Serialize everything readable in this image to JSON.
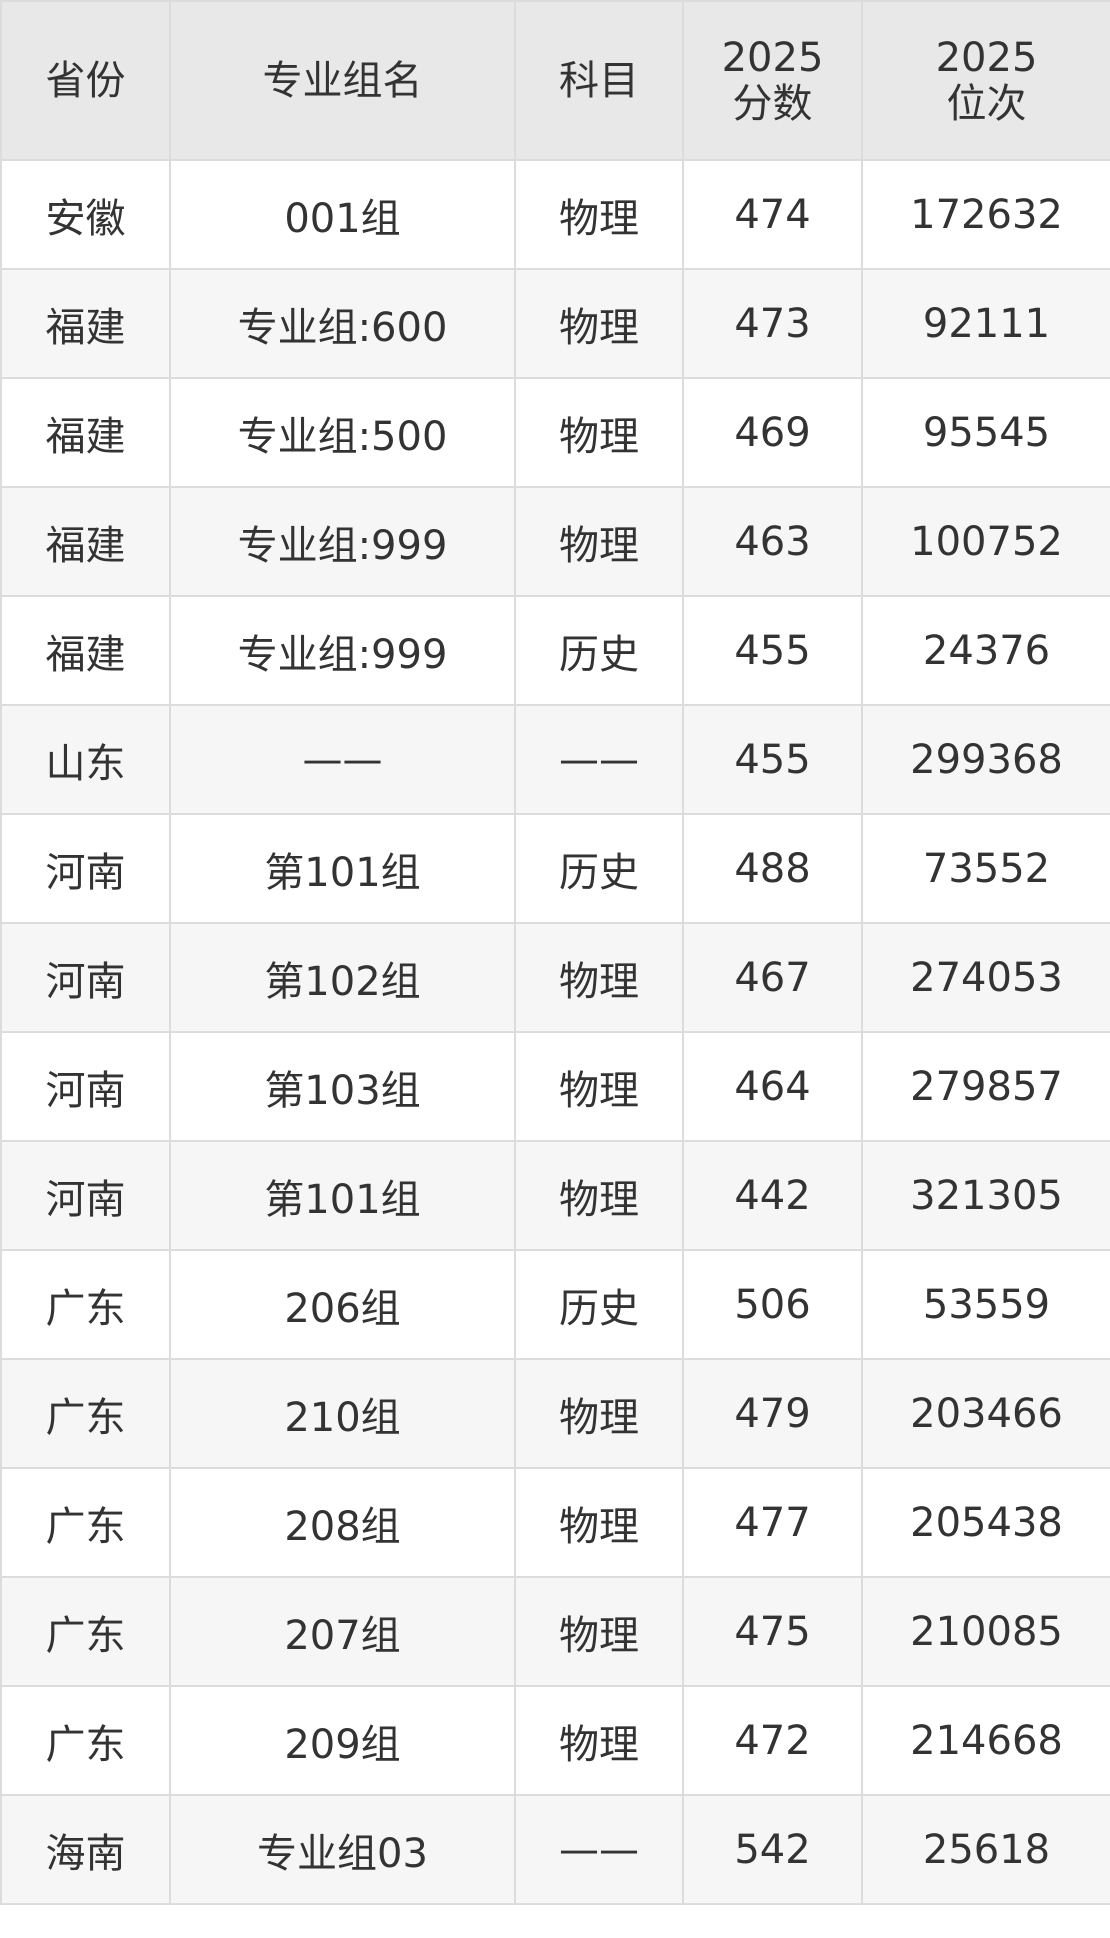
{
  "table": {
    "header": [
      "省份",
      "专业组名",
      "科目",
      "2025\n分数",
      "2025\n位次"
    ],
    "rows": [
      [
        "安徽",
        "001组",
        "物理",
        474,
        172632
      ],
      [
        "福建",
        "专业组:600",
        "物理",
        473,
        92111
      ],
      [
        "福建",
        "专业组:500",
        "物理",
        469,
        95545
      ],
      [
        "福建",
        "专业组:999",
        "物理",
        463,
        100752
      ],
      [
        "福建",
        "专业组:999",
        "历史",
        455,
        24376
      ],
      [
        "山东",
        "——",
        "——",
        455,
        299368
      ],
      [
        "河南",
        "第101组",
        "历史",
        488,
        73552
      ],
      [
        "河南",
        "第102组",
        "物理",
        467,
        274053
      ],
      [
        "河南",
        "第103组",
        "物理",
        464,
        279857
      ],
      [
        "河南",
        "第101组",
        "物理",
        442,
        321305
      ],
      [
        "广东",
        "206组",
        "历史",
        506,
        53559
      ],
      [
        "广东",
        "210组",
        "物理",
        479,
        203466
      ],
      [
        "广东",
        "208组",
        "物理",
        477,
        205438
      ],
      [
        "广东",
        "207组",
        "物理",
        475,
        210085
      ],
      [
        "广东",
        "209组",
        "物理",
        472,
        214668
      ],
      [
        "海南",
        "专业组03",
        "——",
        542,
        25618
      ]
    ]
  }
}
